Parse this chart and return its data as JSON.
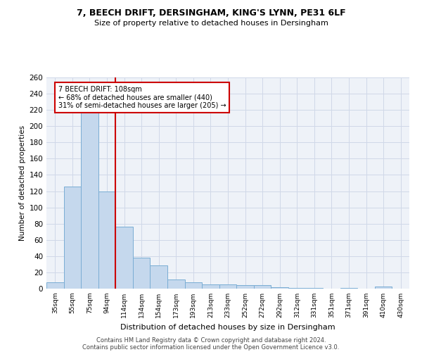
{
  "title_line1": "7, BEECH DRIFT, DERSINGHAM, KING'S LYNN, PE31 6LF",
  "title_line2": "Size of property relative to detached houses in Dersingham",
  "xlabel": "Distribution of detached houses by size in Dersingham",
  "ylabel": "Number of detached properties",
  "categories": [
    "35sqm",
    "55sqm",
    "75sqm",
    "94sqm",
    "114sqm",
    "134sqm",
    "154sqm",
    "173sqm",
    "193sqm",
    "213sqm",
    "233sqm",
    "252sqm",
    "272sqm",
    "292sqm",
    "312sqm",
    "331sqm",
    "351sqm",
    "371sqm",
    "391sqm",
    "410sqm",
    "430sqm"
  ],
  "values": [
    8,
    126,
    218,
    120,
    76,
    38,
    29,
    11,
    8,
    5,
    5,
    4,
    4,
    2,
    1,
    1,
    0,
    1,
    0,
    3,
    0
  ],
  "bar_color": "#c5d8ed",
  "bar_edge_color": "#7aadd4",
  "vline_x": 3.5,
  "vline_color": "#cc0000",
  "annotation_text": "7 BEECH DRIFT: 108sqm\n← 68% of detached houses are smaller (440)\n31% of semi-detached houses are larger (205) →",
  "annotation_box_color": "white",
  "annotation_box_edge_color": "#cc0000",
  "ylim": [
    0,
    260
  ],
  "yticks": [
    0,
    20,
    40,
    60,
    80,
    100,
    120,
    140,
    160,
    180,
    200,
    220,
    240,
    260
  ],
  "grid_color": "#d0d8e8",
  "footer_line1": "Contains HM Land Registry data © Crown copyright and database right 2024.",
  "footer_line2": "Contains public sector information licensed under the Open Government Licence v3.0.",
  "bg_color": "#eef2f8"
}
